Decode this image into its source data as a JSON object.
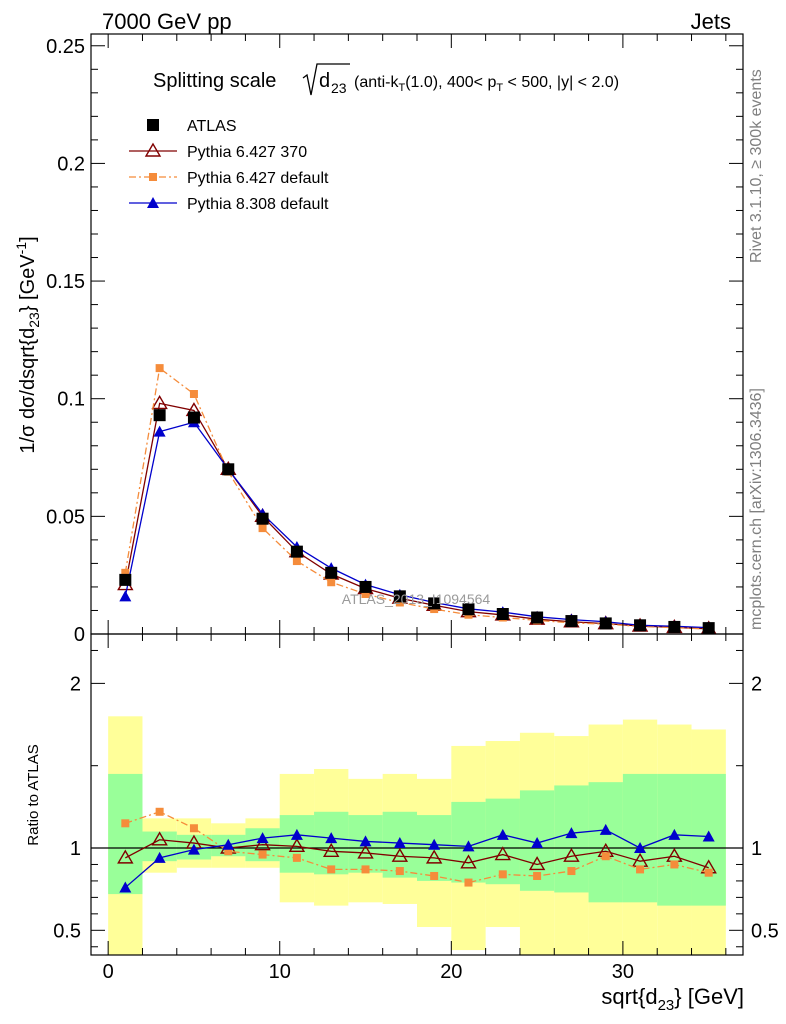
{
  "header": {
    "left": "7000 GeV pp",
    "right": "Jets"
  },
  "side_labels": {
    "rivet": "Rivet 3.1.10, ≥ 300k events",
    "mcplots": "mcplots.cern.ch [arXiv:1306.3436]"
  },
  "watermark": "ATLAS_2013_I1094564",
  "title": {
    "main": "Splitting scale",
    "sqrt_arg": "d",
    "sqrt_sub": "23",
    "details_a": "(anti-k",
    "details_a_sub": "T",
    "details_b": "(1.0), 400< p",
    "details_b_sub": "T",
    "details_c": " < 500, |y| < 2.0)"
  },
  "ylabel": "1/σ dσ/dsqrt{d",
  "ylabel_sub": "23",
  "ylabel_end": "} [GeV",
  "ylabel_sup": "-1",
  "ylabel_close": "]",
  "ratio_ylabel": "Ratio to ATLAS",
  "xlabel": "sqrt{d",
  "xlabel_sub": "23",
  "xlabel_end": "} [GeV]",
  "chart_data": {
    "type": "line",
    "x": [
      1,
      3,
      5,
      7,
      9,
      11,
      13,
      15,
      17,
      19,
      21,
      23,
      25,
      27,
      29,
      31,
      33,
      35
    ],
    "bin_edges": [
      0,
      2,
      4,
      6,
      8,
      10,
      12,
      14,
      16,
      18,
      20,
      22,
      24,
      26,
      28,
      30,
      32,
      34,
      36
    ],
    "xlim": [
      -1,
      37
    ],
    "ylim": [
      0,
      0.255
    ],
    "xticks": [
      "0",
      "10",
      "20",
      "30"
    ],
    "yticks": [
      "0",
      "0.05",
      "0.1",
      "0.15",
      "0.2",
      "0.25"
    ],
    "series": [
      {
        "name": "ATLAS",
        "color": "#000000",
        "marker": "square",
        "values": [
          0.023,
          0.093,
          0.092,
          0.07,
          0.049,
          0.035,
          0.026,
          0.02,
          0.016,
          0.013,
          0.0105,
          0.0085,
          0.007,
          0.0055,
          0.0045,
          0.0037,
          0.003,
          0.0025
        ]
      },
      {
        "name": "Pythia 6.427 370",
        "color": "#800000",
        "marker": "triangle-open",
        "values": [
          0.021,
          0.098,
          0.095,
          0.07,
          0.05,
          0.035,
          0.0255,
          0.0193,
          0.0152,
          0.0122,
          0.0095,
          0.0081,
          0.0063,
          0.0052,
          0.0044,
          0.0034,
          0.0028,
          0.0022
        ]
      },
      {
        "name": "Pythia 6.427 default",
        "color": "#f58c3b",
        "marker": "square-small",
        "dashed": true,
        "values": [
          0.026,
          0.113,
          0.102,
          0.069,
          0.045,
          0.031,
          0.022,
          0.017,
          0.0134,
          0.0106,
          0.0082,
          0.007,
          0.0058,
          0.0047,
          0.0042,
          0.0032,
          0.0027,
          0.0021
        ]
      },
      {
        "name": "Pythia 8.308 default",
        "color": "#0000cc",
        "marker": "triangle",
        "values": [
          0.016,
          0.086,
          0.09,
          0.07,
          0.051,
          0.037,
          0.028,
          0.021,
          0.0167,
          0.0134,
          0.0107,
          0.0093,
          0.0073,
          0.0061,
          0.0052,
          0.0037,
          0.0033,
          0.0027
        ]
      }
    ],
    "ratio": {
      "ylabel": "Ratio to ATLAS",
      "ylim": [
        0.35,
        2.3
      ],
      "yticks": [
        "0.5",
        "1",
        "2"
      ],
      "band_inner": {
        "color": "#99ff99",
        "low": [
          0.72,
          0.92,
          0.93,
          0.95,
          0.92,
          0.85,
          0.84,
          0.85,
          0.82,
          0.8,
          0.79,
          0.78,
          0.74,
          0.73,
          0.67,
          0.67,
          0.65,
          0.65
        ],
        "high": [
          1.45,
          1.1,
          1.08,
          1.08,
          1.12,
          1.2,
          1.22,
          1.2,
          1.22,
          1.2,
          1.28,
          1.3,
          1.35,
          1.38,
          1.4,
          1.45,
          1.45,
          1.45
        ]
      },
      "band_outer": {
        "color": "#ffff99",
        "low": [
          0.35,
          0.85,
          0.88,
          0.88,
          0.88,
          0.67,
          0.65,
          0.67,
          0.66,
          0.52,
          0.38,
          0.52,
          0.35,
          0.35,
          0.35,
          0.35,
          0.35,
          0.35
        ],
        "high": [
          1.8,
          1.18,
          1.18,
          1.15,
          1.18,
          1.45,
          1.48,
          1.42,
          1.45,
          1.42,
          1.62,
          1.65,
          1.7,
          1.68,
          1.75,
          1.78,
          1.75,
          1.72
        ]
      },
      "series": [
        {
          "name": "Pythia 6.427 370",
          "color": "#800000",
          "marker": "triangle-open",
          "values": [
            0.94,
            1.05,
            1.03,
            1.0,
            1.02,
            1.01,
            0.98,
            0.97,
            0.95,
            0.94,
            0.91,
            0.96,
            0.9,
            0.95,
            0.98,
            0.92,
            0.95,
            0.88
          ]
        },
        {
          "name": "Pythia 6.427 default",
          "color": "#f58c3b",
          "marker": "square-small",
          "dashed": true,
          "values": [
            1.15,
            1.22,
            1.12,
            0.98,
            0.96,
            0.94,
            0.87,
            0.87,
            0.86,
            0.83,
            0.79,
            0.84,
            0.83,
            0.86,
            0.95,
            0.87,
            0.9,
            0.85
          ]
        },
        {
          "name": "Pythia 8.308 default",
          "color": "#0000cc",
          "marker": "triangle",
          "values": [
            0.76,
            0.94,
            0.99,
            1.02,
            1.06,
            1.08,
            1.06,
            1.04,
            1.03,
            1.02,
            1.01,
            1.08,
            1.03,
            1.09,
            1.11,
            1.0,
            1.08,
            1.07
          ]
        }
      ]
    }
  }
}
